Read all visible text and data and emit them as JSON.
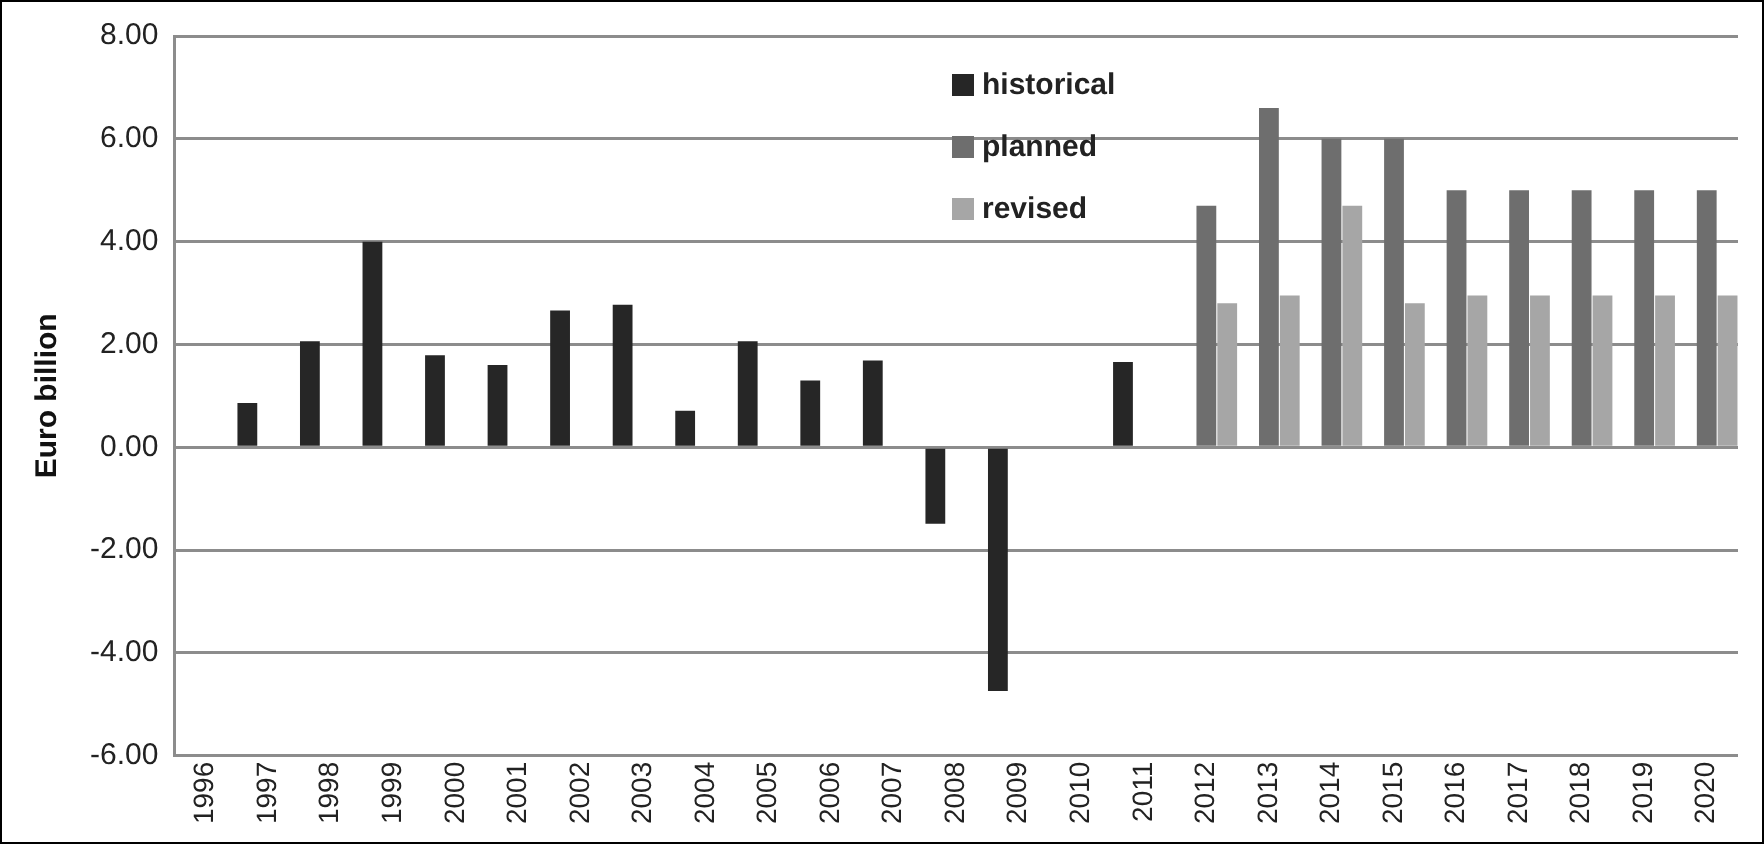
{
  "chart_data": {
    "type": "bar",
    "ylabel": "Euro billion",
    "categories": [
      "1996",
      "1997",
      "1998",
      "1999",
      "2000",
      "2001",
      "2002",
      "2003",
      "2004",
      "2005",
      "2006",
      "2007",
      "2008",
      "2009",
      "2010",
      "2011",
      "2012",
      "2013",
      "2014",
      "2015",
      "2016",
      "2017",
      "2018",
      "2019",
      "2020"
    ],
    "series": [
      {
        "name": "historical",
        "color": "#262626",
        "values": [
          null,
          0.86,
          2.06,
          4.0,
          1.79,
          1.6,
          2.66,
          2.77,
          0.71,
          2.06,
          1.3,
          1.69,
          -1.49,
          -4.74,
          null,
          1.66,
          null,
          null,
          null,
          null,
          null,
          null,
          null,
          null,
          null
        ]
      },
      {
        "name": "planned",
        "color": "#6e6e6e",
        "values": [
          null,
          null,
          null,
          null,
          null,
          null,
          null,
          null,
          null,
          null,
          null,
          null,
          null,
          null,
          null,
          null,
          4.7,
          6.6,
          6.0,
          6.0,
          5.0,
          5.0,
          5.0,
          5.0,
          5.0
        ]
      },
      {
        "name": "revised",
        "color": "#a6a6a6",
        "values": [
          null,
          null,
          null,
          null,
          null,
          null,
          null,
          null,
          null,
          null,
          null,
          null,
          null,
          null,
          null,
          null,
          2.8,
          2.95,
          4.7,
          2.8,
          2.95,
          2.95,
          2.95,
          2.95,
          2.95
        ]
      }
    ],
    "ylim": [
      -6,
      8
    ],
    "yticks": [
      {
        "value": -6,
        "label": "-6.00"
      },
      {
        "value": -4,
        "label": "-4.00"
      },
      {
        "value": -2,
        "label": "-2.00"
      },
      {
        "value": 0,
        "label": "0.00"
      },
      {
        "value": 2,
        "label": "2.00"
      },
      {
        "value": 4,
        "label": "4.00"
      },
      {
        "value": 6,
        "label": "6.00"
      },
      {
        "value": 8,
        "label": "8.00"
      }
    ],
    "grid": "y",
    "legend": "top"
  }
}
